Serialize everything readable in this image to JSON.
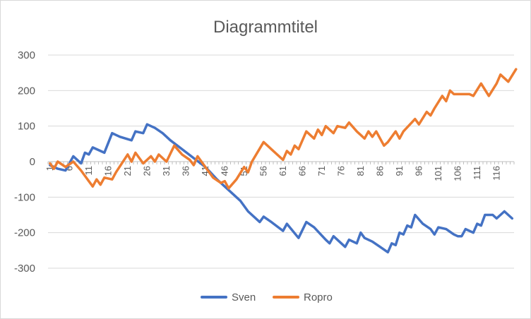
{
  "chart_data": {
    "type": "line",
    "title": "Diagrammtitel",
    "xlabel": "",
    "ylabel": "",
    "ylim": [
      -300,
      300
    ],
    "yticks": [
      300,
      200,
      100,
      0,
      -100,
      -200,
      -300
    ],
    "xticks": [
      1,
      6,
      11,
      16,
      21,
      26,
      31,
      36,
      41,
      46,
      51,
      56,
      61,
      66,
      71,
      76,
      81,
      86,
      91,
      96,
      101,
      106,
      111,
      116
    ],
    "x_count": 120,
    "grid": true,
    "legend_position": "bottom",
    "colors": {
      "Sven": "#4472c4",
      "Ropro": "#ed7d31"
    },
    "series": [
      {
        "name": "Sven",
        "points": [
          [
            1,
            -10
          ],
          [
            3,
            -20
          ],
          [
            5,
            -25
          ],
          [
            7,
            15
          ],
          [
            9,
            -5
          ],
          [
            10,
            25
          ],
          [
            11,
            20
          ],
          [
            12,
            40
          ],
          [
            15,
            25
          ],
          [
            17,
            80
          ],
          [
            19,
            70
          ],
          [
            22,
            60
          ],
          [
            23,
            85
          ],
          [
            25,
            80
          ],
          [
            26,
            105
          ],
          [
            28,
            95
          ],
          [
            30,
            80
          ],
          [
            32,
            60
          ],
          [
            35,
            35
          ],
          [
            38,
            10
          ],
          [
            41,
            -15
          ],
          [
            44,
            -50
          ],
          [
            47,
            -80
          ],
          [
            50,
            -110
          ],
          [
            52,
            -140
          ],
          [
            55,
            -170
          ],
          [
            56,
            -155
          ],
          [
            58,
            -170
          ],
          [
            61,
            -195
          ],
          [
            62,
            -175
          ],
          [
            65,
            -215
          ],
          [
            67,
            -170
          ],
          [
            69,
            -185
          ],
          [
            72,
            -220
          ],
          [
            73,
            -230
          ],
          [
            74,
            -210
          ],
          [
            77,
            -240
          ],
          [
            78,
            -220
          ],
          [
            80,
            -230
          ],
          [
            81,
            -200
          ],
          [
            82,
            -215
          ],
          [
            84,
            -225
          ],
          [
            86,
            -240
          ],
          [
            88,
            -255
          ],
          [
            89,
            -230
          ],
          [
            90,
            -235
          ],
          [
            91,
            -200
          ],
          [
            92,
            -205
          ],
          [
            93,
            -180
          ],
          [
            94,
            -185
          ],
          [
            95,
            -150
          ],
          [
            97,
            -175
          ],
          [
            99,
            -190
          ],
          [
            100,
            -205
          ],
          [
            101,
            -185
          ],
          [
            103,
            -190
          ],
          [
            105,
            -205
          ],
          [
            106,
            -210
          ],
          [
            107,
            -210
          ],
          [
            108,
            -190
          ],
          [
            110,
            -200
          ],
          [
            111,
            -175
          ],
          [
            112,
            -180
          ],
          [
            113,
            -150
          ],
          [
            115,
            -150
          ],
          [
            116,
            -160
          ],
          [
            118,
            -140
          ],
          [
            120,
            -160
          ]
        ]
      },
      {
        "name": "Ropro",
        "points": [
          [
            1,
            -5
          ],
          [
            2,
            -20
          ],
          [
            3,
            0
          ],
          [
            5,
            -15
          ],
          [
            7,
            0
          ],
          [
            9,
            -25
          ],
          [
            11,
            -55
          ],
          [
            12,
            -70
          ],
          [
            13,
            -50
          ],
          [
            14,
            -65
          ],
          [
            15,
            -45
          ],
          [
            17,
            -50
          ],
          [
            18,
            -30
          ],
          [
            21,
            20
          ],
          [
            22,
            0
          ],
          [
            23,
            25
          ],
          [
            25,
            -5
          ],
          [
            27,
            15
          ],
          [
            28,
            0
          ],
          [
            29,
            20
          ],
          [
            31,
            0
          ],
          [
            33,
            45
          ],
          [
            35,
            20
          ],
          [
            37,
            5
          ],
          [
            38,
            -10
          ],
          [
            39,
            15
          ],
          [
            41,
            -15
          ],
          [
            43,
            -45
          ],
          [
            45,
            -60
          ],
          [
            46,
            -55
          ],
          [
            47,
            -75
          ],
          [
            49,
            -50
          ],
          [
            51,
            -15
          ],
          [
            52,
            -30
          ],
          [
            53,
            0
          ],
          [
            56,
            55
          ],
          [
            58,
            35
          ],
          [
            61,
            5
          ],
          [
            62,
            30
          ],
          [
            63,
            20
          ],
          [
            64,
            45
          ],
          [
            65,
            35
          ],
          [
            67,
            85
          ],
          [
            69,
            65
          ],
          [
            70,
            90
          ],
          [
            71,
            75
          ],
          [
            72,
            100
          ],
          [
            74,
            80
          ],
          [
            75,
            100
          ],
          [
            77,
            95
          ],
          [
            78,
            110
          ],
          [
            80,
            85
          ],
          [
            82,
            65
          ],
          [
            83,
            85
          ],
          [
            84,
            70
          ],
          [
            85,
            85
          ],
          [
            87,
            45
          ],
          [
            88,
            55
          ],
          [
            90,
            85
          ],
          [
            91,
            65
          ],
          [
            92,
            85
          ],
          [
            95,
            120
          ],
          [
            96,
            105
          ],
          [
            98,
            140
          ],
          [
            99,
            130
          ],
          [
            100,
            150
          ],
          [
            102,
            185
          ],
          [
            103,
            170
          ],
          [
            104,
            200
          ],
          [
            105,
            190
          ],
          [
            109,
            190
          ],
          [
            110,
            185
          ],
          [
            112,
            220
          ],
          [
            114,
            185
          ],
          [
            116,
            220
          ],
          [
            117,
            245
          ],
          [
            119,
            225
          ],
          [
            121,
            260
          ]
        ]
      }
    ]
  }
}
